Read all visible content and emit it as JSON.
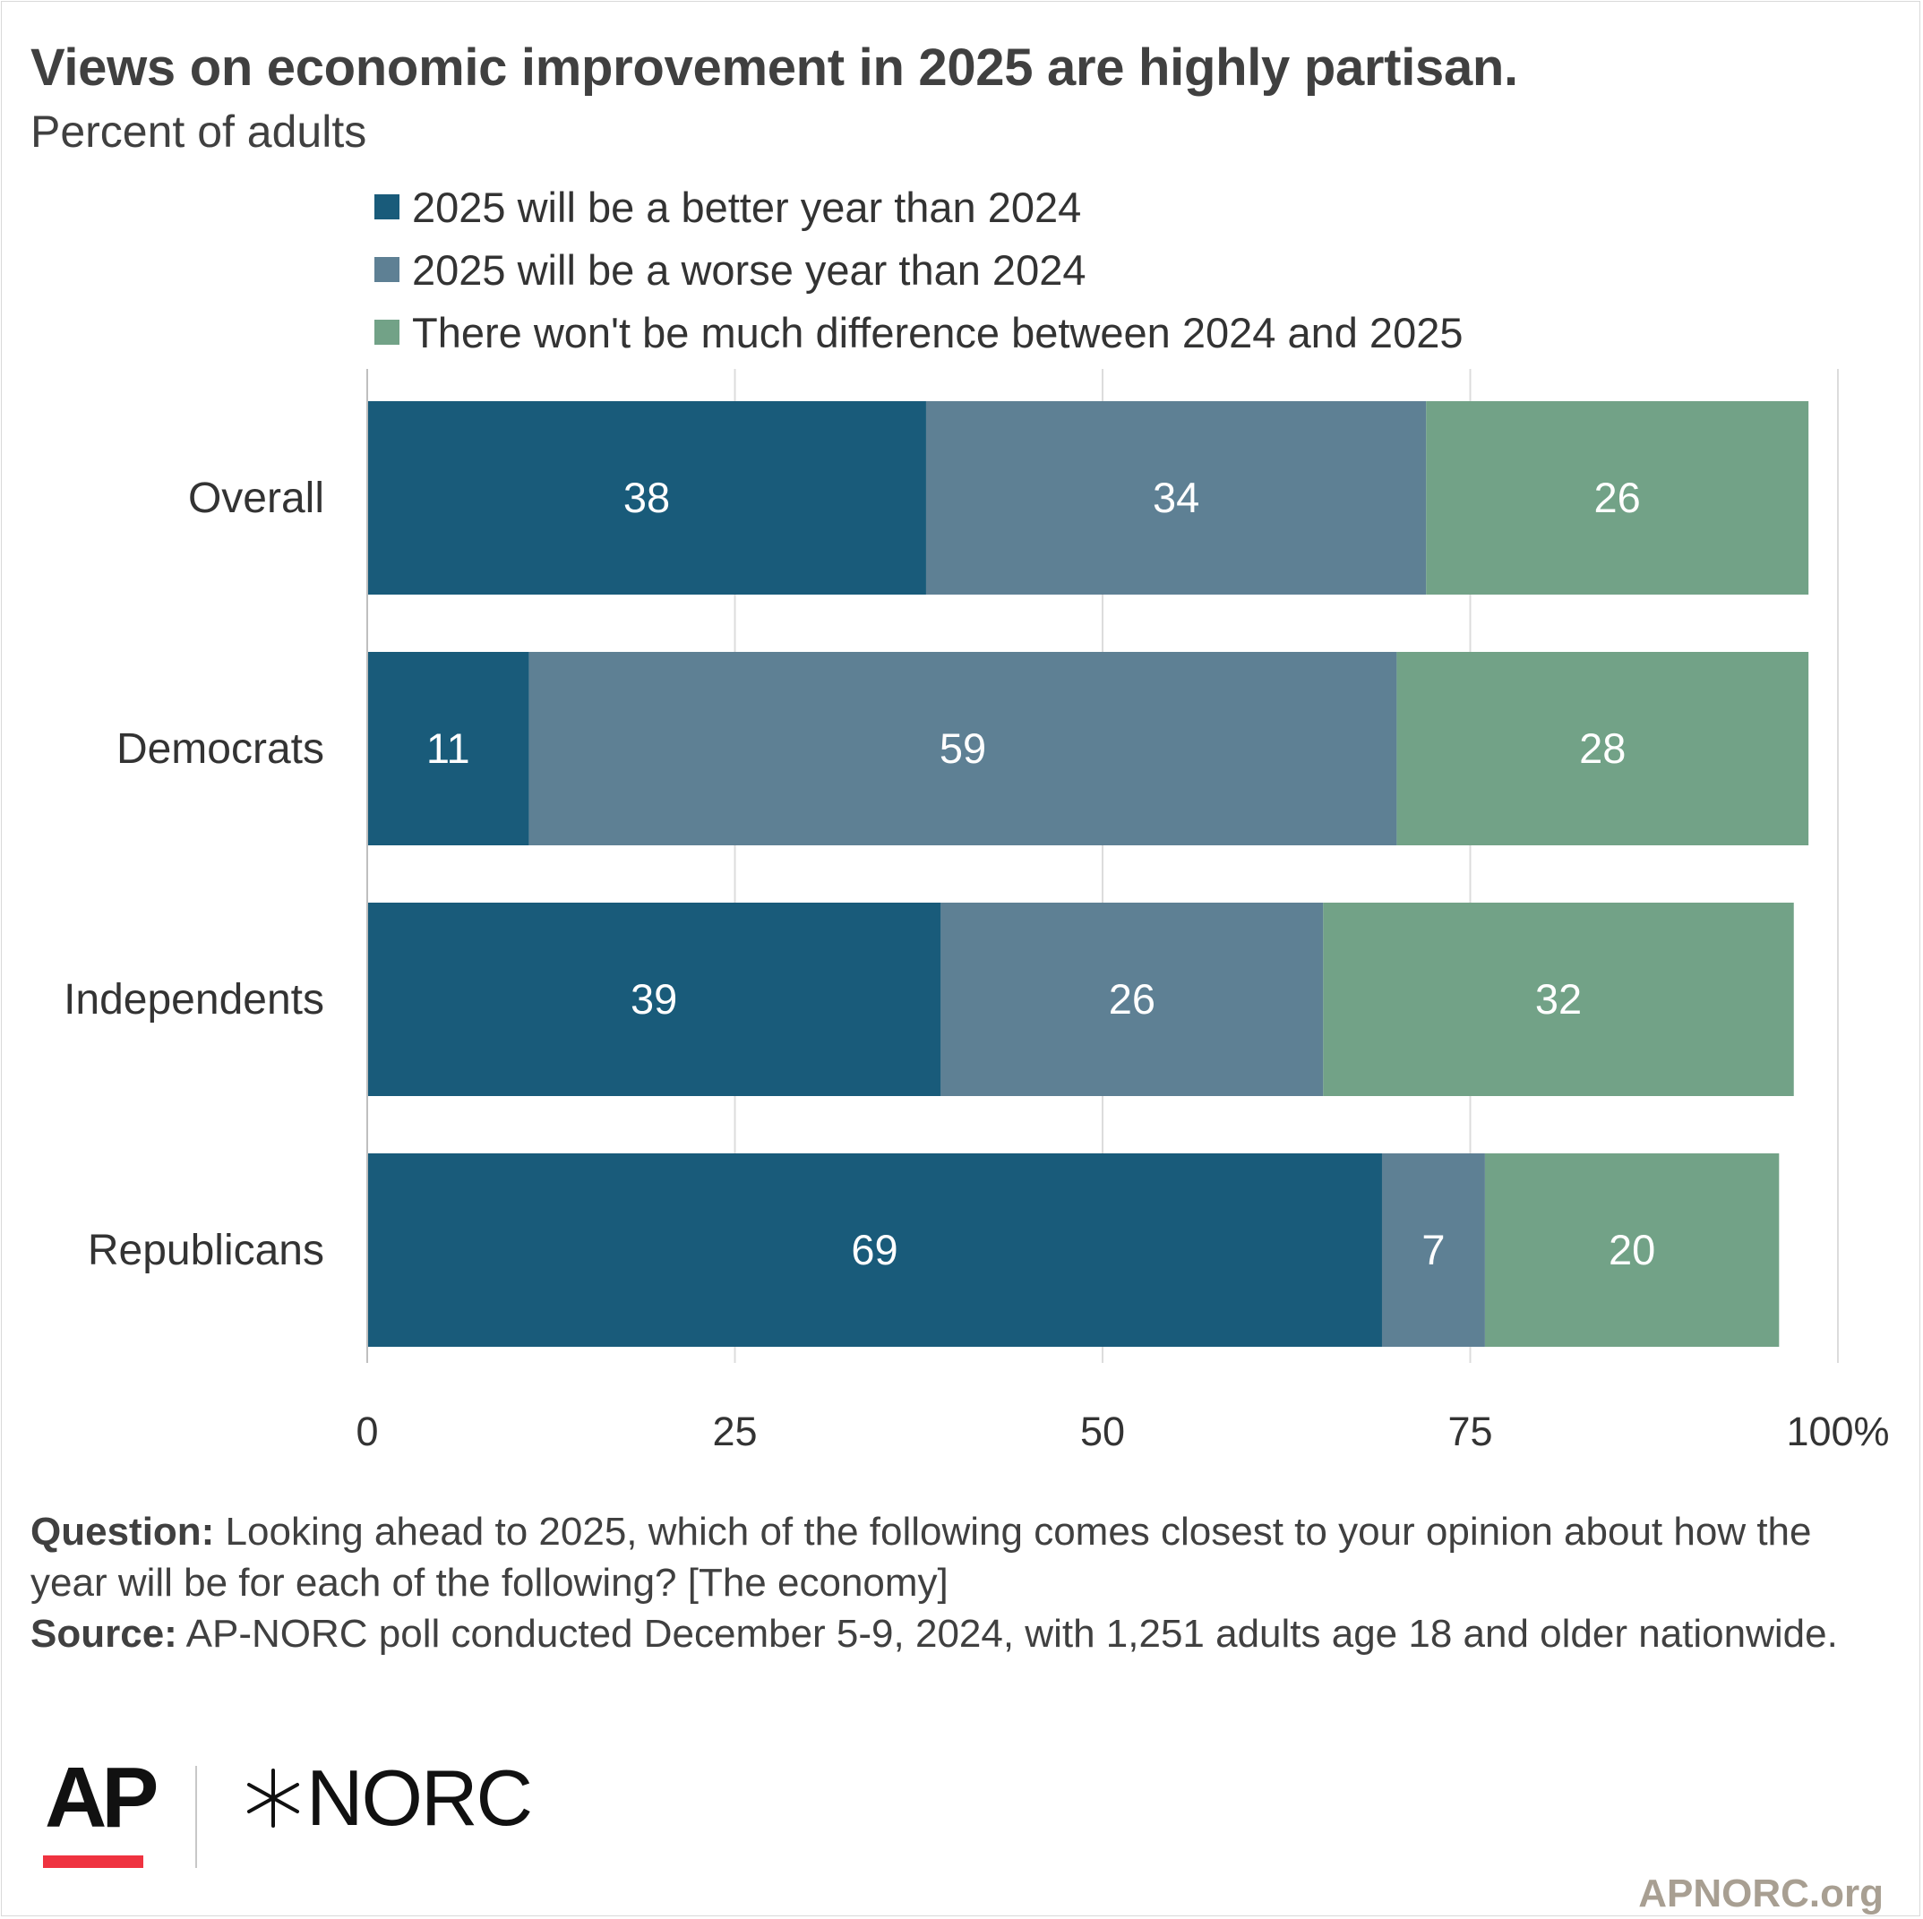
{
  "header": {
    "title": "Views on economic improvement in 2025 are highly partisan.",
    "subtitle": "Percent of adults"
  },
  "colors": {
    "better": "#195b7a",
    "worse": "#5e8094",
    "same": "#72a287",
    "grid": "#dcdcdc",
    "bar_label": "#ffffff"
  },
  "chart_data": {
    "type": "bar",
    "orientation": "horizontal",
    "stacked": true,
    "categories": [
      "Overall",
      "Democrats",
      "Independents",
      "Republicans"
    ],
    "series": [
      {
        "name": "2025 will be a better year than 2024",
        "color_key": "better",
        "values": [
          38,
          11,
          39,
          69
        ]
      },
      {
        "name": "2025 will be a worse year than 2024",
        "color_key": "worse",
        "values": [
          34,
          59,
          26,
          7
        ]
      },
      {
        "name": "There won't be much difference between 2024 and 2025",
        "color_key": "same",
        "values": [
          26,
          28,
          32,
          20
        ]
      }
    ],
    "x_ticks": [
      "0",
      "25",
      "50",
      "75",
      "100%"
    ],
    "xlim": [
      0,
      100
    ],
    "xlabel": "",
    "ylabel": "",
    "grid": true,
    "legend_position": "top"
  },
  "notes": {
    "question_label": "Question:",
    "question_text": " Looking ahead to 2025, which of the following comes closest to your opinion about how the year will be for each of the following? [The economy]",
    "source_label": "Source:",
    "source_text": " AP-NORC poll conducted December 5-9, 2024, with 1,251 adults age 18 and older nationwide."
  },
  "branding": {
    "ap_logo": "AP",
    "norc_logo": "NORC",
    "norc_icon": "asterisk-star-icon",
    "site": "APNORC.org"
  }
}
